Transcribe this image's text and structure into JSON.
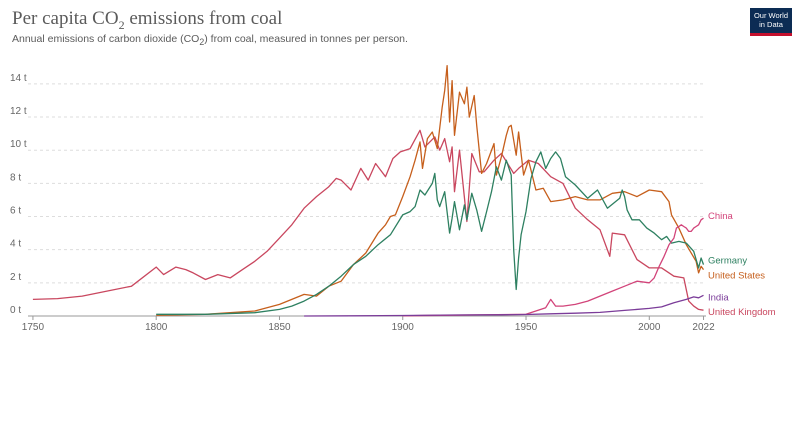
{
  "header": {
    "title_main": "Per capita CO",
    "title_sub": "2",
    "title_end": " emissions from coal",
    "subtitle_a": "Annual emissions of carbon dioxide (CO",
    "subtitle_sub": "2",
    "subtitle_b": ") from coal, measured in tonnes per person.",
    "logo_line1": "Our World",
    "logo_line2": "in Data"
  },
  "colors": {
    "grid": "#dddddd",
    "uk": "#c9475f",
    "us": "#c65f1c",
    "germany": "#2e8061",
    "china": "#d2447a",
    "india": "#7b3c99"
  },
  "chart_data": {
    "type": "line",
    "title": "Per capita CO₂ emissions from coal",
    "subtitle": "Annual emissions of carbon dioxide (CO₂) from coal, measured in tonnes per person.",
    "xlim": [
      1748,
      2023
    ],
    "ylim": [
      0,
      15.2
    ],
    "x_ticks": [
      1750,
      1800,
      1850,
      1900,
      1950,
      2000,
      2022
    ],
    "y_ticks": [
      {
        "value": 0,
        "label": "0 t"
      },
      {
        "value": 2,
        "label": "2 t"
      },
      {
        "value": 4,
        "label": "4 t"
      },
      {
        "value": 6,
        "label": "6 t"
      },
      {
        "value": 8,
        "label": "8 t"
      },
      {
        "value": 10,
        "label": "10 t"
      },
      {
        "value": 12,
        "label": "12 t"
      },
      {
        "value": 14,
        "label": "14 t"
      }
    ],
    "grid": "horizontal dashed",
    "legend": "labels at line ends (right)",
    "series": [
      {
        "name": "United Kingdom",
        "color_key": "uk",
        "points": [
          [
            1750,
            1.0
          ],
          [
            1760,
            1.05
          ],
          [
            1770,
            1.2
          ],
          [
            1780,
            1.5
          ],
          [
            1790,
            1.8
          ],
          [
            1800,
            2.95
          ],
          [
            1803,
            2.5
          ],
          [
            1808,
            2.95
          ],
          [
            1812,
            2.8
          ],
          [
            1815,
            2.6
          ],
          [
            1820,
            2.2
          ],
          [
            1825,
            2.5
          ],
          [
            1830,
            2.3
          ],
          [
            1835,
            2.8
          ],
          [
            1840,
            3.3
          ],
          [
            1845,
            3.9
          ],
          [
            1850,
            4.7
          ],
          [
            1855,
            5.5
          ],
          [
            1860,
            6.5
          ],
          [
            1865,
            7.2
          ],
          [
            1870,
            7.8
          ],
          [
            1873,
            8.3
          ],
          [
            1875,
            8.2
          ],
          [
            1879,
            7.6
          ],
          [
            1883,
            8.9
          ],
          [
            1886,
            8.2
          ],
          [
            1889,
            9.2
          ],
          [
            1893,
            8.4
          ],
          [
            1896,
            9.5
          ],
          [
            1899,
            9.9
          ],
          [
            1903,
            10.1
          ],
          [
            1907,
            11.2
          ],
          [
            1909,
            10.2
          ],
          [
            1913,
            10.8
          ],
          [
            1915,
            10.0
          ],
          [
            1917,
            10.7
          ],
          [
            1919,
            9.3
          ],
          [
            1920,
            10.2
          ],
          [
            1921,
            7.5
          ],
          [
            1923,
            10.0
          ],
          [
            1926,
            5.7
          ],
          [
            1928,
            9.8
          ],
          [
            1931,
            8.7
          ],
          [
            1933,
            8.7
          ],
          [
            1937,
            9.4
          ],
          [
            1940,
            9.8
          ],
          [
            1945,
            8.6
          ],
          [
            1947,
            8.9
          ],
          [
            1951,
            9.4
          ],
          [
            1955,
            9.2
          ],
          [
            1960,
            8.4
          ],
          [
            1965,
            8.0
          ],
          [
            1970,
            6.5
          ],
          [
            1975,
            5.8
          ],
          [
            1980,
            5.2
          ],
          [
            1984,
            3.6
          ],
          [
            1985,
            5.0
          ],
          [
            1990,
            4.9
          ],
          [
            1995,
            3.4
          ],
          [
            2000,
            2.9
          ],
          [
            2005,
            2.9
          ],
          [
            2010,
            2.4
          ],
          [
            2014,
            2.3
          ],
          [
            2016,
            0.9
          ],
          [
            2018,
            0.6
          ],
          [
            2020,
            0.4
          ],
          [
            2022,
            0.35
          ]
        ]
      },
      {
        "name": "United States",
        "color_key": "us",
        "points": [
          [
            1800,
            0.05
          ],
          [
            1820,
            0.1
          ],
          [
            1840,
            0.3
          ],
          [
            1850,
            0.7
          ],
          [
            1855,
            1.0
          ],
          [
            1860,
            1.3
          ],
          [
            1865,
            1.2
          ],
          [
            1870,
            1.8
          ],
          [
            1875,
            2.1
          ],
          [
            1880,
            3.1
          ],
          [
            1885,
            3.8
          ],
          [
            1890,
            5.0
          ],
          [
            1893,
            5.5
          ],
          [
            1895,
            6.0
          ],
          [
            1897,
            6.1
          ],
          [
            1900,
            7.2
          ],
          [
            1903,
            8.4
          ],
          [
            1905,
            9.4
          ],
          [
            1907,
            10.5
          ],
          [
            1908,
            8.9
          ],
          [
            1910,
            10.7
          ],
          [
            1912,
            11.1
          ],
          [
            1914,
            10.1
          ],
          [
            1916,
            12.6
          ],
          [
            1917,
            13.6
          ],
          [
            1918,
            15.1
          ],
          [
            1919,
            11.7
          ],
          [
            1920,
            14.2
          ],
          [
            1921,
            10.9
          ],
          [
            1923,
            13.5
          ],
          [
            1925,
            12.8
          ],
          [
            1926,
            13.8
          ],
          [
            1927,
            12.0
          ],
          [
            1929,
            13.3
          ],
          [
            1930,
            11.5
          ],
          [
            1932,
            8.6
          ],
          [
            1934,
            9.2
          ],
          [
            1937,
            10.4
          ],
          [
            1938,
            8.5
          ],
          [
            1940,
            9.6
          ],
          [
            1942,
            10.9
          ],
          [
            1943,
            11.4
          ],
          [
            1944,
            11.5
          ],
          [
            1946,
            9.7
          ],
          [
            1947,
            11.1
          ],
          [
            1949,
            8.5
          ],
          [
            1951,
            9.4
          ],
          [
            1954,
            7.6
          ],
          [
            1957,
            7.7
          ],
          [
            1960,
            6.9
          ],
          [
            1965,
            7.0
          ],
          [
            1970,
            7.2
          ],
          [
            1975,
            7.0
          ],
          [
            1980,
            7.0
          ],
          [
            1985,
            7.4
          ],
          [
            1990,
            7.5
          ],
          [
            1995,
            7.2
          ],
          [
            2000,
            7.6
          ],
          [
            2005,
            7.5
          ],
          [
            2008,
            6.9
          ],
          [
            2009,
            6.1
          ],
          [
            2012,
            5.3
          ],
          [
            2015,
            4.3
          ],
          [
            2019,
            3.3
          ],
          [
            2020,
            2.6
          ],
          [
            2021,
            3.0
          ],
          [
            2022,
            2.8
          ]
        ]
      },
      {
        "name": "Germany",
        "color_key": "germany",
        "points": [
          [
            1800,
            0.1
          ],
          [
            1820,
            0.1
          ],
          [
            1840,
            0.2
          ],
          [
            1850,
            0.4
          ],
          [
            1855,
            0.6
          ],
          [
            1860,
            0.9
          ],
          [
            1865,
            1.3
          ],
          [
            1870,
            1.8
          ],
          [
            1875,
            2.4
          ],
          [
            1880,
            3.1
          ],
          [
            1885,
            3.6
          ],
          [
            1890,
            4.3
          ],
          [
            1895,
            4.9
          ],
          [
            1900,
            6.1
          ],
          [
            1903,
            6.3
          ],
          [
            1905,
            6.6
          ],
          [
            1907,
            7.6
          ],
          [
            1909,
            7.3
          ],
          [
            1912,
            8.0
          ],
          [
            1913,
            8.6
          ],
          [
            1914,
            7.0
          ],
          [
            1915,
            6.6
          ],
          [
            1917,
            7.5
          ],
          [
            1919,
            5.0
          ],
          [
            1920,
            5.9
          ],
          [
            1921,
            6.9
          ],
          [
            1923,
            5.2
          ],
          [
            1925,
            6.7
          ],
          [
            1926,
            5.8
          ],
          [
            1928,
            7.4
          ],
          [
            1930,
            6.4
          ],
          [
            1932,
            5.1
          ],
          [
            1934,
            6.3
          ],
          [
            1936,
            7.5
          ],
          [
            1938,
            9.0
          ],
          [
            1940,
            8.2
          ],
          [
            1942,
            9.4
          ],
          [
            1944,
            8.5
          ],
          [
            1945,
            4.0
          ],
          [
            1946,
            1.6
          ],
          [
            1947,
            3.5
          ],
          [
            1948,
            4.9
          ],
          [
            1950,
            6.3
          ],
          [
            1952,
            8.3
          ],
          [
            1954,
            9.3
          ],
          [
            1956,
            9.9
          ],
          [
            1958,
            8.9
          ],
          [
            1960,
            9.5
          ],
          [
            1962,
            9.9
          ],
          [
            1964,
            9.5
          ],
          [
            1966,
            8.4
          ],
          [
            1970,
            7.9
          ],
          [
            1975,
            7.1
          ],
          [
            1979,
            7.6
          ],
          [
            1983,
            6.5
          ],
          [
            1988,
            7.1
          ],
          [
            1989,
            7.6
          ],
          [
            1990,
            7.2
          ],
          [
            1991,
            6.4
          ],
          [
            1993,
            5.8
          ],
          [
            1996,
            5.8
          ],
          [
            1999,
            5.3
          ],
          [
            2002,
            5.0
          ],
          [
            2005,
            4.6
          ],
          [
            2007,
            4.8
          ],
          [
            2009,
            4.4
          ],
          [
            2012,
            4.5
          ],
          [
            2015,
            4.4
          ],
          [
            2018,
            3.9
          ],
          [
            2020,
            2.9
          ],
          [
            2021,
            3.5
          ],
          [
            2022,
            3.1
          ]
        ]
      },
      {
        "name": "China",
        "color_key": "china",
        "points": [
          [
            1900,
            0.01
          ],
          [
            1920,
            0.05
          ],
          [
            1950,
            0.1
          ],
          [
            1958,
            0.5
          ],
          [
            1960,
            1.0
          ],
          [
            1962,
            0.6
          ],
          [
            1965,
            0.6
          ],
          [
            1970,
            0.7
          ],
          [
            1975,
            0.9
          ],
          [
            1980,
            1.2
          ],
          [
            1985,
            1.5
          ],
          [
            1990,
            1.8
          ],
          [
            1995,
            2.1
          ],
          [
            2000,
            2.0
          ],
          [
            2002,
            2.3
          ],
          [
            2004,
            3.0
          ],
          [
            2006,
            3.6
          ],
          [
            2008,
            4.3
          ],
          [
            2010,
            4.7
          ],
          [
            2011,
            5.3
          ],
          [
            2012,
            5.4
          ],
          [
            2013,
            5.5
          ],
          [
            2014,
            5.4
          ],
          [
            2015,
            5.3
          ],
          [
            2016,
            5.1
          ],
          [
            2017,
            5.1
          ],
          [
            2018,
            5.3
          ],
          [
            2019,
            5.4
          ],
          [
            2020,
            5.5
          ],
          [
            2021,
            5.8
          ],
          [
            2022,
            5.9
          ]
        ]
      },
      {
        "name": "India",
        "color_key": "india",
        "points": [
          [
            1860,
            0.0
          ],
          [
            1880,
            0.01
          ],
          [
            1900,
            0.03
          ],
          [
            1920,
            0.06
          ],
          [
            1940,
            0.07
          ],
          [
            1950,
            0.09
          ],
          [
            1960,
            0.13
          ],
          [
            1970,
            0.17
          ],
          [
            1980,
            0.22
          ],
          [
            1990,
            0.34
          ],
          [
            2000,
            0.46
          ],
          [
            2005,
            0.55
          ],
          [
            2010,
            0.8
          ],
          [
            2015,
            1.0
          ],
          [
            2018,
            1.15
          ],
          [
            2020,
            1.1
          ],
          [
            2022,
            1.25
          ]
        ]
      }
    ],
    "series_labels": {
      "China": "China",
      "Germany": "Germany",
      "United States": "United States",
      "India": "India",
      "United Kingdom": "United Kingdom"
    }
  }
}
